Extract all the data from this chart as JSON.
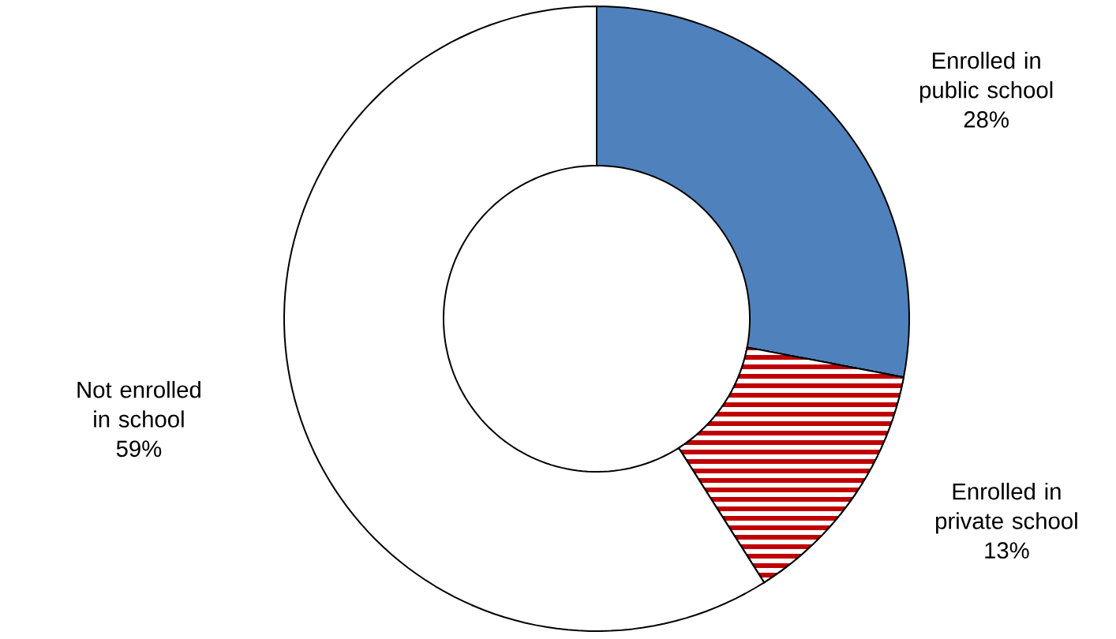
{
  "chart_data": {
    "type": "donut",
    "categories": [
      "Enrolled in public school",
      "Enrolled in private school",
      "Not enrolled in school"
    ],
    "values": [
      28,
      13,
      59
    ],
    "value_labels": [
      "28%",
      "13%",
      "59%"
    ],
    "colors": [
      "#4f81bd",
      "#c00000",
      "#ffffff"
    ]
  }
}
